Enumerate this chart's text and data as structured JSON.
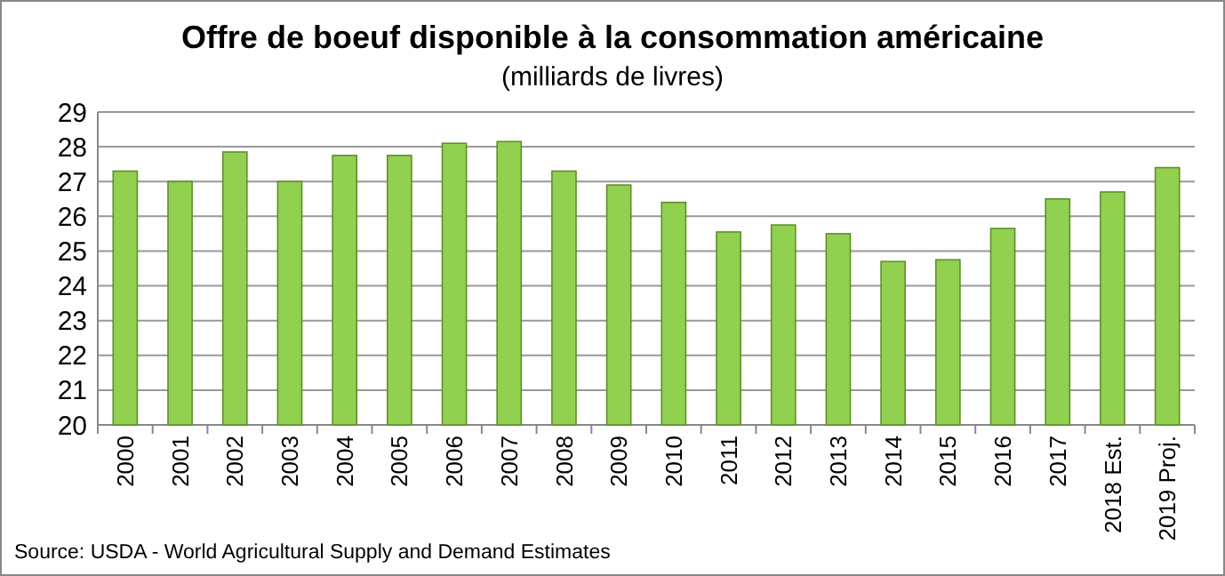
{
  "chart_data": {
    "type": "bar",
    "title": "Offre de boeuf disponible à la consommation américaine",
    "subtitle": "(milliards de livres)",
    "categories": [
      "2000",
      "2001",
      "2002",
      "2003",
      "2004",
      "2005",
      "2006",
      "2007",
      "2008",
      "2009",
      "2010",
      "2011",
      "2012",
      "2013",
      "2014",
      "2015",
      "2016",
      "2017",
      "2018 Est.",
      "2019 Proj."
    ],
    "values": [
      27.3,
      27.0,
      27.85,
      27.0,
      27.75,
      27.75,
      28.1,
      28.15,
      27.3,
      26.9,
      26.4,
      25.55,
      25.75,
      25.5,
      24.7,
      24.75,
      25.65,
      26.5,
      26.7,
      27.4
    ],
    "color": "#92d050",
    "ylim": [
      20,
      29
    ],
    "yticks": [
      20,
      21,
      22,
      23,
      24,
      25,
      26,
      27,
      28,
      29
    ],
    "grid": "y",
    "annotations": [
      "Source: USDA - World Agricultural Supply and Demand Estimates"
    ]
  }
}
